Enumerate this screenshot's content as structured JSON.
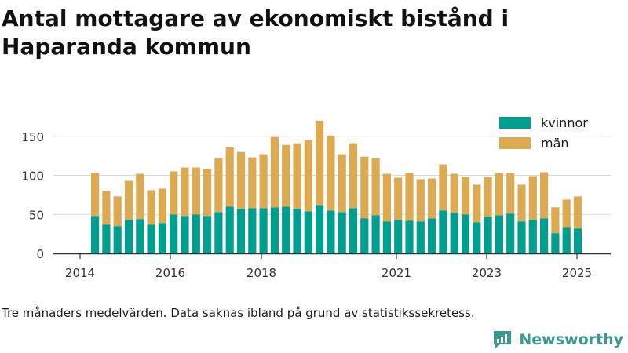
{
  "title": "Antal mottagare av ekonomiskt bistånd i Haparanda kommun",
  "note": "Tre månaders medelvärden. Data saknas ibland på grund av statistikssekretess.",
  "brand": {
    "name": "Newsworthy",
    "logo_icon": "newsworthy-logo-icon"
  },
  "colors": {
    "kvinnor": "#009e8e",
    "man": "#dcaa52",
    "grid": "#d9d9d9",
    "axis": "#333333"
  },
  "chart_data": {
    "type": "bar",
    "stacked": true,
    "x_ticks": [
      "2014",
      "2016",
      "2018",
      "2021",
      "2023",
      "2025"
    ],
    "y_ticks": [
      "0",
      "50",
      "100",
      "150"
    ],
    "ylim": [
      0,
      175
    ],
    "grid": true,
    "legend_position": "top-right",
    "series": [
      {
        "name": "kvinnor",
        "color": "#009e8e",
        "values": [
          48,
          37,
          35,
          43,
          44,
          37,
          39,
          50,
          48,
          50,
          48,
          53,
          60,
          57,
          58,
          58,
          59,
          60,
          57,
          54,
          62,
          55,
          53,
          58,
          45,
          49,
          41,
          43,
          42,
          41,
          45,
          55,
          52,
          50,
          40,
          47,
          49,
          51,
          41,
          43,
          45,
          26,
          33,
          32
        ]
      },
      {
        "name": "män",
        "color": "#dcaa52",
        "values": [
          55,
          43,
          38,
          50,
          58,
          44,
          44,
          55,
          62,
          60,
          60,
          69,
          76,
          73,
          65,
          69,
          90,
          79,
          84,
          91,
          108,
          96,
          74,
          83,
          79,
          73,
          61,
          54,
          61,
          54,
          51,
          59,
          50,
          48,
          48,
          51,
          54,
          52,
          47,
          56,
          59,
          33,
          36,
          41
        ]
      }
    ]
  }
}
